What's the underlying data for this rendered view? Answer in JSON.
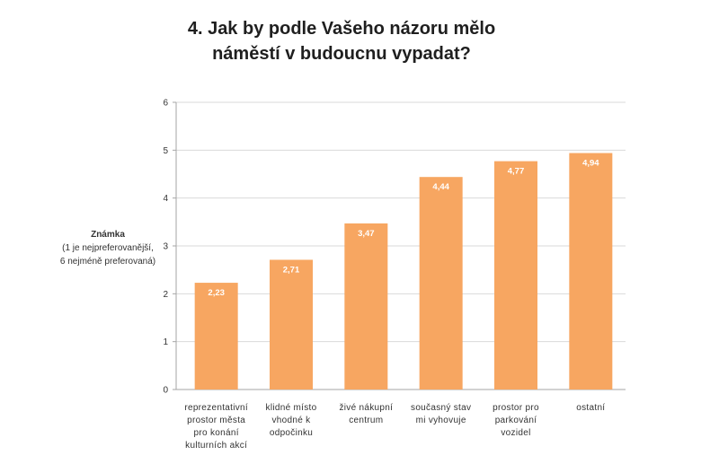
{
  "chart_data": {
    "type": "bar",
    "title": [
      "4. Jak by podle Vašeho názoru mělo",
      "náměstí v budoucnu vypadat?"
    ],
    "ylabel": {
      "main": "Známka",
      "note": [
        "(1 je nejpreferovanější,",
        "6 nejméně preferovaná)"
      ]
    },
    "xlabel": "",
    "categories": [
      "reprezentativní prostor města pro konání kulturních akcí",
      "klidné místo vhodné k odpočinku",
      "živé nákupní centrum",
      "současný stav mi vyhovuje",
      "prostor pro parkování vozidel",
      "ostatní"
    ],
    "category_lines": [
      [
        "reprezentativní",
        "prostor města",
        "pro konání",
        "kulturních akcí"
      ],
      [
        "klidné místo",
        "vhodné k",
        "odpočinku"
      ],
      [
        "živé nákupní",
        "centrum"
      ],
      [
        "současný stav",
        "mi vyhovuje"
      ],
      [
        "prostor pro",
        "parkování",
        "vozidel"
      ],
      [
        "ostatní"
      ]
    ],
    "values": [
      2.23,
      2.71,
      3.47,
      4.44,
      4.77,
      4.94
    ],
    "value_labels": [
      "2,23",
      "2,71",
      "3,47",
      "4,44",
      "4,77",
      "4,94"
    ],
    "ylim": [
      0,
      6
    ],
    "yticks": [
      0,
      1,
      2,
      3,
      4,
      5,
      6
    ],
    "grid": true,
    "legend": "none",
    "colors": {
      "bar": "#f7a661",
      "grid": "#d9d9d9",
      "axis": "#a6a6a6",
      "value_label": "#ffffff"
    }
  }
}
